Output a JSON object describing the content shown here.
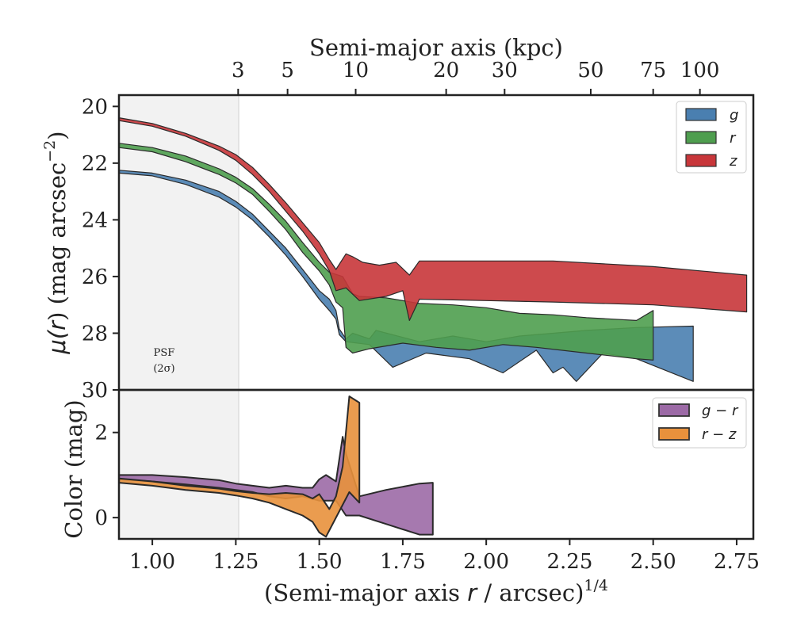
{
  "colors": {
    "g": "#4a7fb0",
    "r": "#4f9e4f",
    "z": "#c8363a",
    "gr": "#9c6aa6",
    "rz": "#e8913c",
    "psf_shade": "#f2f2f2"
  },
  "axes": {
    "top_label": "Semi-major axis (kpc)",
    "bottom_label_pre": "(Semi-major axis ",
    "bottom_label_var": "r",
    "bottom_label_post": " / arcsec)",
    "bottom_label_sup": "1/4",
    "upper_ylabel_a": "μ(",
    "upper_ylabel_var": "r",
    "upper_ylabel_b": ") (mag arcsec",
    "upper_ylabel_sup": "−2",
    "upper_ylabel_c": ")",
    "lower_ylabel": "Color (mag)"
  },
  "psf": {
    "line1": "PSF",
    "line2": "(2σ)",
    "x_limit": 1.26
  },
  "chart_data": [
    {
      "type": "area",
      "panel": "upper",
      "ylabel": "μ(r) (mag arcsec−2)",
      "xlim": [
        0.9,
        2.8
      ],
      "ylim": [
        30.0,
        19.6
      ],
      "y_inverted": true,
      "x_ticks": [
        1.0,
        1.25,
        1.5,
        1.75,
        2.0,
        2.25,
        2.5,
        2.75
      ],
      "x_tick_labels": [
        "1.00",
        "1.25",
        "1.50",
        "1.75",
        "2.00",
        "2.25",
        "2.50",
        "2.75"
      ],
      "y_ticks": [
        20,
        22,
        24,
        26,
        28,
        30
      ],
      "top_axis": {
        "label": "Semi-major axis (kpc)",
        "ticks": [
          1.257,
          1.405,
          1.609,
          1.88,
          2.055,
          2.313,
          2.5,
          2.64
        ],
        "tick_labels": [
          "3",
          "5",
          "10",
          "20",
          "30",
          "50",
          "75",
          "100"
        ]
      },
      "legend": {
        "position": "top-right",
        "entries": [
          "g",
          "r",
          "z"
        ]
      },
      "series": [
        {
          "name": "g",
          "upper": [
            [
              0.9,
              22.25
            ],
            [
              1.0,
              22.35
            ],
            [
              1.1,
              22.6
            ],
            [
              1.2,
              23.0
            ],
            [
              1.25,
              23.35
            ],
            [
              1.3,
              23.8
            ],
            [
              1.35,
              24.4
            ],
            [
              1.4,
              25.0
            ],
            [
              1.45,
              25.75
            ],
            [
              1.5,
              26.5
            ],
            [
              1.53,
              26.8
            ],
            [
              1.55,
              27.2
            ],
            [
              1.56,
              27.85
            ],
            [
              1.58,
              28.2
            ],
            [
              1.6,
              28.0
            ],
            [
              1.65,
              28.2
            ],
            [
              1.67,
              27.9
            ],
            [
              1.8,
              28.3
            ],
            [
              1.9,
              28.1
            ],
            [
              2.0,
              28.3
            ],
            [
              2.1,
              28.1
            ],
            [
              2.2,
              28.0
            ],
            [
              2.3,
              27.9
            ],
            [
              2.45,
              27.8
            ],
            [
              2.62,
              27.75
            ]
          ],
          "lower": [
            [
              0.9,
              22.35
            ],
            [
              1.0,
              22.45
            ],
            [
              1.1,
              22.75
            ],
            [
              1.2,
              23.2
            ],
            [
              1.25,
              23.55
            ],
            [
              1.3,
              24.0
            ],
            [
              1.35,
              24.6
            ],
            [
              1.4,
              25.25
            ],
            [
              1.45,
              26.0
            ],
            [
              1.5,
              26.8
            ],
            [
              1.53,
              27.2
            ],
            [
              1.55,
              27.5
            ],
            [
              1.56,
              28.05
            ],
            [
              1.58,
              28.3
            ],
            [
              1.65,
              28.4
            ],
            [
              1.72,
              29.2
            ],
            [
              1.82,
              28.7
            ],
            [
              1.95,
              28.9
            ],
            [
              2.05,
              29.4
            ],
            [
              2.15,
              28.6
            ],
            [
              2.2,
              29.4
            ],
            [
              2.23,
              29.2
            ],
            [
              2.27,
              29.7
            ],
            [
              2.35,
              28.7
            ],
            [
              2.45,
              28.9
            ],
            [
              2.62,
              29.7
            ]
          ]
        },
        {
          "name": "r",
          "upper": [
            [
              0.9,
              21.3
            ],
            [
              1.0,
              21.45
            ],
            [
              1.1,
              21.75
            ],
            [
              1.2,
              22.2
            ],
            [
              1.25,
              22.5
            ],
            [
              1.3,
              22.9
            ],
            [
              1.35,
              23.45
            ],
            [
              1.4,
              24.05
            ],
            [
              1.45,
              24.8
            ],
            [
              1.5,
              25.5
            ],
            [
              1.53,
              25.85
            ],
            [
              1.57,
              26.0
            ],
            [
              1.6,
              26.6
            ],
            [
              1.62,
              26.7
            ],
            [
              1.7,
              26.75
            ],
            [
              1.8,
              26.95
            ],
            [
              1.9,
              27.0
            ],
            [
              2.0,
              27.1
            ],
            [
              2.1,
              27.3
            ],
            [
              2.2,
              27.35
            ],
            [
              2.3,
              27.45
            ],
            [
              2.45,
              27.55
            ],
            [
              2.5,
              27.2
            ]
          ],
          "lower": [
            [
              0.9,
              21.45
            ],
            [
              1.0,
              21.6
            ],
            [
              1.1,
              21.95
            ],
            [
              1.2,
              22.4
            ],
            [
              1.25,
              22.7
            ],
            [
              1.3,
              23.1
            ],
            [
              1.35,
              23.7
            ],
            [
              1.4,
              24.35
            ],
            [
              1.45,
              25.15
            ],
            [
              1.5,
              25.8
            ],
            [
              1.53,
              26.3
            ],
            [
              1.55,
              26.9
            ],
            [
              1.57,
              27.1
            ],
            [
              1.58,
              28.5
            ],
            [
              1.6,
              28.7
            ],
            [
              1.65,
              28.55
            ],
            [
              1.75,
              28.35
            ],
            [
              1.85,
              28.5
            ],
            [
              1.95,
              28.6
            ],
            [
              2.05,
              28.4
            ],
            [
              2.15,
              28.5
            ],
            [
              2.3,
              28.7
            ],
            [
              2.45,
              28.9
            ],
            [
              2.5,
              28.95
            ]
          ]
        },
        {
          "name": "z",
          "upper": [
            [
              0.9,
              20.4
            ],
            [
              1.0,
              20.6
            ],
            [
              1.1,
              20.95
            ],
            [
              1.2,
              21.4
            ],
            [
              1.25,
              21.7
            ],
            [
              1.3,
              22.15
            ],
            [
              1.35,
              22.75
            ],
            [
              1.4,
              23.4
            ],
            [
              1.45,
              24.1
            ],
            [
              1.5,
              24.8
            ],
            [
              1.53,
              25.4
            ],
            [
              1.55,
              25.75
            ],
            [
              1.58,
              25.2
            ],
            [
              1.6,
              25.3
            ],
            [
              1.63,
              25.5
            ],
            [
              1.68,
              25.6
            ],
            [
              1.73,
              25.5
            ],
            [
              1.77,
              25.95
            ],
            [
              1.8,
              25.45
            ],
            [
              2.0,
              25.45
            ],
            [
              2.2,
              25.45
            ],
            [
              2.5,
              25.65
            ],
            [
              2.78,
              25.95
            ]
          ],
          "lower": [
            [
              0.9,
              20.5
            ],
            [
              1.0,
              20.7
            ],
            [
              1.1,
              21.05
            ],
            [
              1.2,
              21.55
            ],
            [
              1.25,
              21.9
            ],
            [
              1.3,
              22.4
            ],
            [
              1.35,
              23.0
            ],
            [
              1.4,
              23.7
            ],
            [
              1.45,
              24.4
            ],
            [
              1.5,
              25.2
            ],
            [
              1.53,
              25.8
            ],
            [
              1.55,
              26.5
            ],
            [
              1.58,
              26.4
            ],
            [
              1.62,
              26.85
            ],
            [
              1.7,
              26.7
            ],
            [
              1.75,
              26.5
            ],
            [
              1.77,
              27.55
            ],
            [
              1.8,
              26.8
            ],
            [
              2.0,
              26.85
            ],
            [
              2.2,
              26.9
            ],
            [
              2.5,
              27.0
            ],
            [
              2.78,
              27.25
            ]
          ]
        }
      ]
    },
    {
      "type": "area",
      "panel": "lower",
      "ylabel": "Color (mag)",
      "xlim": [
        0.9,
        2.8
      ],
      "ylim": [
        -0.5,
        3.0
      ],
      "y_ticks": [
        0,
        2
      ],
      "legend": {
        "position": "top-right",
        "entries": [
          "g − r",
          "r − z"
        ]
      },
      "series": [
        {
          "name": "g − r",
          "upper": [
            [
              0.9,
              1.0
            ],
            [
              1.0,
              1.0
            ],
            [
              1.1,
              0.95
            ],
            [
              1.2,
              0.88
            ],
            [
              1.25,
              0.8
            ],
            [
              1.3,
              0.75
            ],
            [
              1.35,
              0.7
            ],
            [
              1.4,
              0.75
            ],
            [
              1.45,
              0.7
            ],
            [
              1.48,
              0.7
            ],
            [
              1.5,
              0.9
            ],
            [
              1.52,
              1.0
            ],
            [
              1.55,
              0.85
            ],
            [
              1.57,
              1.9
            ],
            [
              1.58,
              1.5
            ],
            [
              1.6,
              1.0
            ],
            [
              1.62,
              0.5
            ],
            [
              1.7,
              0.65
            ],
            [
              1.8,
              0.8
            ],
            [
              1.84,
              0.82
            ]
          ],
          "lower": [
            [
              0.9,
              0.9
            ],
            [
              1.0,
              0.85
            ],
            [
              1.1,
              0.78
            ],
            [
              1.2,
              0.7
            ],
            [
              1.25,
              0.65
            ],
            [
              1.3,
              0.6
            ],
            [
              1.35,
              0.5
            ],
            [
              1.4,
              0.45
            ],
            [
              1.45,
              0.5
            ],
            [
              1.5,
              0.4
            ],
            [
              1.55,
              0.4
            ],
            [
              1.58,
              0.05
            ],
            [
              1.62,
              0.05
            ],
            [
              1.7,
              -0.15
            ],
            [
              1.8,
              -0.4
            ],
            [
              1.84,
              -0.4
            ]
          ]
        },
        {
          "name": "r − z",
          "upper": [
            [
              0.9,
              0.92
            ],
            [
              1.0,
              0.85
            ],
            [
              1.1,
              0.75
            ],
            [
              1.2,
              0.68
            ],
            [
              1.25,
              0.62
            ],
            [
              1.3,
              0.58
            ],
            [
              1.35,
              0.55
            ],
            [
              1.4,
              0.58
            ],
            [
              1.45,
              0.55
            ],
            [
              1.48,
              0.45
            ],
            [
              1.5,
              0.55
            ],
            [
              1.53,
              0.2
            ],
            [
              1.55,
              0.5
            ],
            [
              1.57,
              1.2
            ],
            [
              1.59,
              2.85
            ],
            [
              1.62,
              2.7
            ]
          ],
          "lower": [
            [
              0.9,
              0.82
            ],
            [
              1.0,
              0.75
            ],
            [
              1.1,
              0.65
            ],
            [
              1.2,
              0.58
            ],
            [
              1.25,
              0.52
            ],
            [
              1.3,
              0.45
            ],
            [
              1.35,
              0.35
            ],
            [
              1.4,
              0.2
            ],
            [
              1.45,
              0.05
            ],
            [
              1.48,
              -0.1
            ],
            [
              1.5,
              -0.35
            ],
            [
              1.52,
              -0.45
            ],
            [
              1.55,
              0.0
            ],
            [
              1.57,
              0.3
            ],
            [
              1.59,
              0.6
            ],
            [
              1.62,
              0.35
            ]
          ]
        }
      ]
    }
  ]
}
